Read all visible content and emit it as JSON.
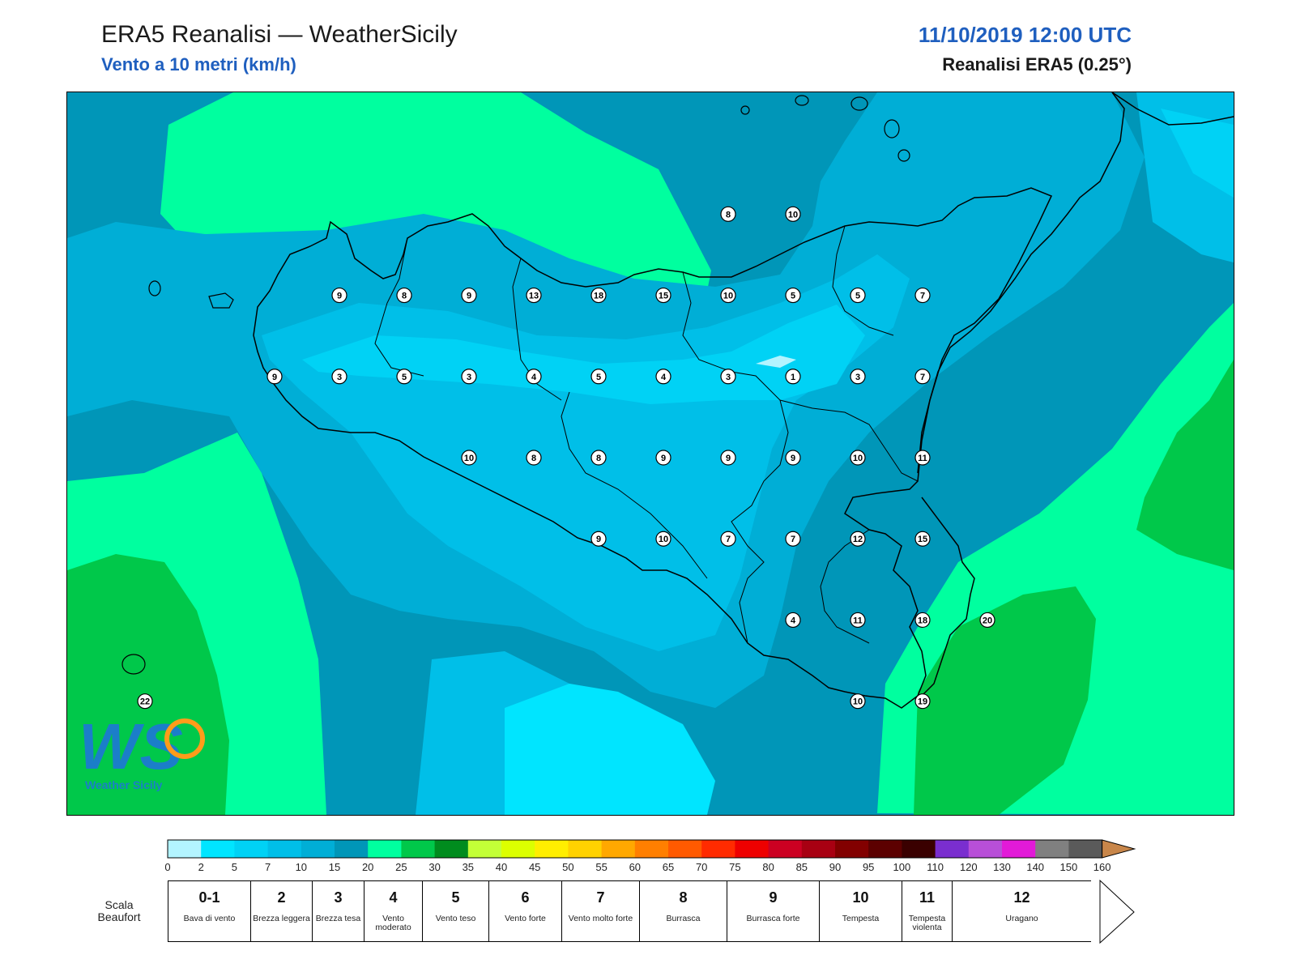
{
  "header": {
    "title": "ERA5 Reanalisi — WeatherSicily",
    "subtitle": "Vento a 10 metri (km/h)",
    "datetime": "11/10/2019 12:00 UTC",
    "source": "Reanalisi ERA5 (0.25°)"
  },
  "logo": {
    "text": "WS",
    "caption": "Weather Sicily"
  },
  "stations": [
    {
      "v": "8",
      "lon": 15.5,
      "lat": 38.5
    },
    {
      "v": "10",
      "lon": 16.0,
      "lat": 38.5
    },
    {
      "v": "9",
      "lon": 12.5,
      "lat": 38.0
    },
    {
      "v": "8",
      "lon": 13.0,
      "lat": 38.0
    },
    {
      "v": "9",
      "lon": 13.5,
      "lat": 38.0
    },
    {
      "v": "13",
      "lon": 14.0,
      "lat": 38.0
    },
    {
      "v": "18",
      "lon": 14.5,
      "lat": 38.0
    },
    {
      "v": "15",
      "lon": 15.0,
      "lat": 38.0
    },
    {
      "v": "10",
      "lon": 15.5,
      "lat": 38.0
    },
    {
      "v": "5",
      "lon": 16.0,
      "lat": 38.0
    },
    {
      "v": "5",
      "lon": 16.5,
      "lat": 38.0
    },
    {
      "v": "7",
      "lon": 17.0,
      "lat": 38.0
    },
    {
      "v": "9",
      "lon": 12.0,
      "lat": 37.5
    },
    {
      "v": "3",
      "lon": 12.5,
      "lat": 37.5
    },
    {
      "v": "5",
      "lon": 13.0,
      "lat": 37.5
    },
    {
      "v": "3",
      "lon": 13.5,
      "lat": 37.5
    },
    {
      "v": "4",
      "lon": 14.0,
      "lat": 37.5
    },
    {
      "v": "5",
      "lon": 14.5,
      "lat": 37.5
    },
    {
      "v": "4",
      "lon": 15.0,
      "lat": 37.5
    },
    {
      "v": "3",
      "lon": 15.5,
      "lat": 37.5
    },
    {
      "v": "1",
      "lon": 16.0,
      "lat": 37.5
    },
    {
      "v": "3",
      "lon": 16.5,
      "lat": 37.5
    },
    {
      "v": "7",
      "lon": 17.0,
      "lat": 37.5
    },
    {
      "v": "10",
      "lon": 13.5,
      "lat": 37.0
    },
    {
      "v": "8",
      "lon": 14.0,
      "lat": 37.0
    },
    {
      "v": "8",
      "lon": 14.5,
      "lat": 37.0
    },
    {
      "v": "9",
      "lon": 15.0,
      "lat": 37.0
    },
    {
      "v": "9",
      "lon": 15.5,
      "lat": 37.0
    },
    {
      "v": "9",
      "lon": 16.0,
      "lat": 37.0
    },
    {
      "v": "10",
      "lon": 16.5,
      "lat": 37.0
    },
    {
      "v": "11",
      "lon": 17.0,
      "lat": 37.0
    },
    {
      "v": "9",
      "lon": 14.5,
      "lat": 36.5
    },
    {
      "v": "10",
      "lon": 15.0,
      "lat": 36.5
    },
    {
      "v": "7",
      "lon": 15.5,
      "lat": 36.5
    },
    {
      "v": "7",
      "lon": 16.0,
      "lat": 36.5
    },
    {
      "v": "12",
      "lon": 16.5,
      "lat": 36.5
    },
    {
      "v": "15",
      "lon": 17.0,
      "lat": 36.5
    },
    {
      "v": "4",
      "lon": 16.0,
      "lat": 36.0
    },
    {
      "v": "11",
      "lon": 16.5,
      "lat": 36.0
    },
    {
      "v": "18",
      "lon": 17.0,
      "lat": 36.0
    },
    {
      "v": "20",
      "lon": 17.5,
      "lat": 36.0
    },
    {
      "v": "22",
      "lon": 11.0,
      "lat": 35.5
    },
    {
      "v": "10",
      "lon": 16.5,
      "lat": 35.5
    },
    {
      "v": "19",
      "lon": 17.0,
      "lat": 35.5
    }
  ],
  "map_extent": {
    "lon_min": 10.4,
    "lon_max": 19.4,
    "lat_min": 34.8,
    "lat_max": 39.25
  },
  "colorbar": {
    "ticks": [
      "0",
      "2",
      "5",
      "7",
      "10",
      "15",
      "20",
      "25",
      "30",
      "35",
      "40",
      "45",
      "50",
      "55",
      "60",
      "65",
      "70",
      "75",
      "80",
      "85",
      "90",
      "95",
      "100",
      "110",
      "120",
      "130",
      "140",
      "150",
      "160"
    ],
    "colors": [
      "#b3f4ff",
      "#00e5ff",
      "#00d2f5",
      "#00bfe8",
      "#00aed6",
      "#0096b8",
      "#00ff9f",
      "#00c84a",
      "#008c1e",
      "#c3ff37",
      "#dcff00",
      "#ffee00",
      "#ffd200",
      "#ffa800",
      "#ff7f00",
      "#ff5a00",
      "#ff2b00",
      "#ee0000",
      "#cc0022",
      "#a80012",
      "#820000",
      "#5c0000",
      "#3a0000",
      "#7a2ecf",
      "#b84fd8",
      "#e21ad8",
      "#808080",
      "#5a5a5a",
      "#000000",
      "#8a4a2a",
      "#c8864a"
    ]
  },
  "beaufort": {
    "label": "Scala Beaufort",
    "items": [
      {
        "num": "0-1",
        "text": "Bava di vento"
      },
      {
        "num": "2",
        "text": "Brezza leggera"
      },
      {
        "num": "3",
        "text": "Brezza tesa"
      },
      {
        "num": "4",
        "text": "Vento moderato"
      },
      {
        "num": "5",
        "text": "Vento teso"
      },
      {
        "num": "6",
        "text": "Vento forte"
      },
      {
        "num": "7",
        "text": "Vento molto forte"
      },
      {
        "num": "8",
        "text": "Burrasca"
      },
      {
        "num": "9",
        "text": "Burrasca forte"
      },
      {
        "num": "10",
        "text": "Tempesta"
      },
      {
        "num": "11",
        "text": "Tempesta violenta"
      },
      {
        "num": "12",
        "text": "Uragano"
      }
    ]
  }
}
